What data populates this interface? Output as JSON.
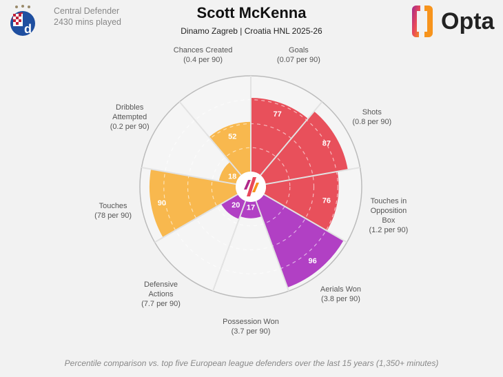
{
  "header": {
    "title": "Scott McKenna",
    "subtitle": "Dinamo Zagreb | Croatia HNL 2025-26",
    "position": "Central Defender",
    "minutes": "2430 mins played",
    "brand": "Opta"
  },
  "footer": "Percentile comparison vs. top five European league defenders over the last 15 years (1,350+ minutes)",
  "chart_data": {
    "type": "pie",
    "subtype": "polar-area percentile",
    "range": [
      0,
      100
    ],
    "categories": [
      {
        "name": "Goals",
        "per90": "(0.07 per 90)",
        "value": 77,
        "color": "#e8505b"
      },
      {
        "name": "Shots",
        "per90": "(0.8 per 90)",
        "value": 87,
        "color": "#e8505b"
      },
      {
        "name": "Touches in Opposition Box",
        "per90": "(1.2 per 90)",
        "value": 76,
        "color": "#e8505b"
      },
      {
        "name": "Aerials Won",
        "per90": "(3.8 per 90)",
        "value": 96,
        "color": "#b140c4"
      },
      {
        "name": "Possession Won",
        "per90": "(3.7 per 90)",
        "value": 17,
        "color": "#b140c4"
      },
      {
        "name": "Defensive Actions",
        "per90": "(7.7 per 90)",
        "value": 20,
        "color": "#b140c4"
      },
      {
        "name": "Touches",
        "per90": "(78 per 90)",
        "value": 90,
        "color": "#f8b84e"
      },
      {
        "name": "Dribbles Attempted",
        "per90": "(0.2 per 90)",
        "value": 18,
        "color": "#f8b84e"
      },
      {
        "name": "Chances Created",
        "per90": "(0.4 per 90)",
        "value": 52,
        "color": "#f8b84e"
      }
    ]
  }
}
